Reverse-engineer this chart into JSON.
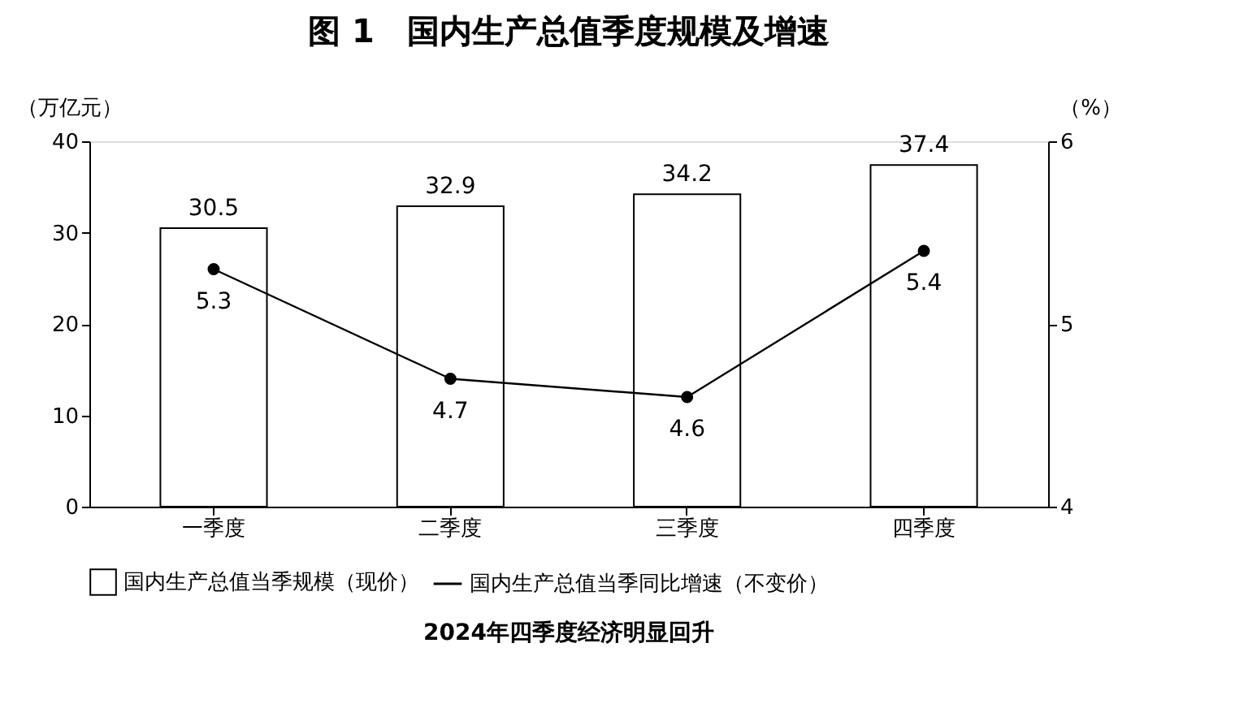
{
  "chart_data": {
    "type": "bar",
    "title": "图 1　国内生产总值季度规模及增速",
    "categories": [
      "一季度",
      "二季度",
      "三季度",
      "四季度"
    ],
    "ylabel": "（万亿元）",
    "y2label": "（%）",
    "series": [
      {
        "name": "国内生产总值当季规模（现价）",
        "color": "#ffffff",
        "values": [
          30.5,
          32.9,
          34.2,
          37.4
        ]
      },
      {
        "name": "国内生产总值当季同比增速（不变价）",
        "type": "line",
        "axis": "y2",
        "color": "#000000",
        "values": [
          5.3,
          4.7,
          4.6,
          5.4
        ]
      }
    ],
    "ylim": [
      0,
      40
    ],
    "yticks": [
      0,
      10,
      20,
      30,
      40
    ],
    "y2lim": [
      4,
      6
    ],
    "y2ticks": [
      4,
      5,
      6
    ],
    "data_labels": true,
    "legend": "bottom",
    "grid": false,
    "marker": "circle",
    "annotations": [
      "2024年四季度经济明显回升"
    ]
  }
}
